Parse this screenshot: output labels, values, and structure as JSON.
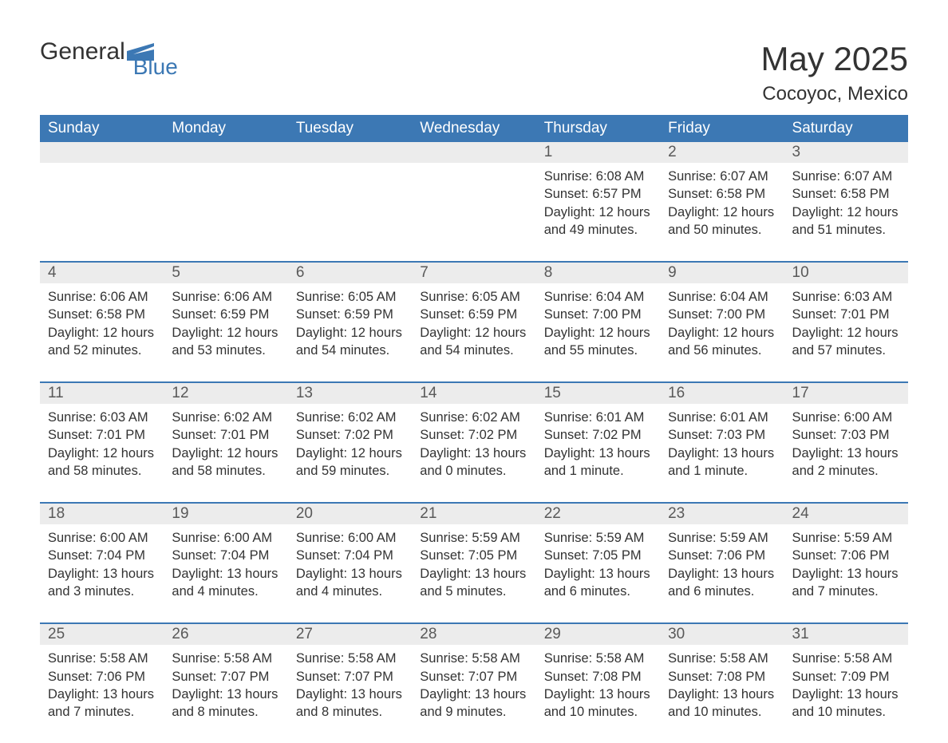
{
  "brand": {
    "general": "General",
    "blue": "Blue"
  },
  "title": "May 2025",
  "location": "Cocoyoc, Mexico",
  "colors": {
    "header_bg": "#3c78b4",
    "header_text": "#ffffff",
    "daynum_bg": "#ececec",
    "daynum_text": "#595959",
    "body_text": "#333333",
    "border": "#3c78b4",
    "page_bg": "#ffffff"
  },
  "dow": [
    "Sunday",
    "Monday",
    "Tuesday",
    "Wednesday",
    "Thursday",
    "Friday",
    "Saturday"
  ],
  "weeks": [
    [
      null,
      null,
      null,
      null,
      {
        "n": "1",
        "sr": "Sunrise: 6:08 AM",
        "ss": "Sunset: 6:57 PM",
        "dl": "Daylight: 12 hours and 49 minutes."
      },
      {
        "n": "2",
        "sr": "Sunrise: 6:07 AM",
        "ss": "Sunset: 6:58 PM",
        "dl": "Daylight: 12 hours and 50 minutes."
      },
      {
        "n": "3",
        "sr": "Sunrise: 6:07 AM",
        "ss": "Sunset: 6:58 PM",
        "dl": "Daylight: 12 hours and 51 minutes."
      }
    ],
    [
      {
        "n": "4",
        "sr": "Sunrise: 6:06 AM",
        "ss": "Sunset: 6:58 PM",
        "dl": "Daylight: 12 hours and 52 minutes."
      },
      {
        "n": "5",
        "sr": "Sunrise: 6:06 AM",
        "ss": "Sunset: 6:59 PM",
        "dl": "Daylight: 12 hours and 53 minutes."
      },
      {
        "n": "6",
        "sr": "Sunrise: 6:05 AM",
        "ss": "Sunset: 6:59 PM",
        "dl": "Daylight: 12 hours and 54 minutes."
      },
      {
        "n": "7",
        "sr": "Sunrise: 6:05 AM",
        "ss": "Sunset: 6:59 PM",
        "dl": "Daylight: 12 hours and 54 minutes."
      },
      {
        "n": "8",
        "sr": "Sunrise: 6:04 AM",
        "ss": "Sunset: 7:00 PM",
        "dl": "Daylight: 12 hours and 55 minutes."
      },
      {
        "n": "9",
        "sr": "Sunrise: 6:04 AM",
        "ss": "Sunset: 7:00 PM",
        "dl": "Daylight: 12 hours and 56 minutes."
      },
      {
        "n": "10",
        "sr": "Sunrise: 6:03 AM",
        "ss": "Sunset: 7:01 PM",
        "dl": "Daylight: 12 hours and 57 minutes."
      }
    ],
    [
      {
        "n": "11",
        "sr": "Sunrise: 6:03 AM",
        "ss": "Sunset: 7:01 PM",
        "dl": "Daylight: 12 hours and 58 minutes."
      },
      {
        "n": "12",
        "sr": "Sunrise: 6:02 AM",
        "ss": "Sunset: 7:01 PM",
        "dl": "Daylight: 12 hours and 58 minutes."
      },
      {
        "n": "13",
        "sr": "Sunrise: 6:02 AM",
        "ss": "Sunset: 7:02 PM",
        "dl": "Daylight: 12 hours and 59 minutes."
      },
      {
        "n": "14",
        "sr": "Sunrise: 6:02 AM",
        "ss": "Sunset: 7:02 PM",
        "dl": "Daylight: 13 hours and 0 minutes."
      },
      {
        "n": "15",
        "sr": "Sunrise: 6:01 AM",
        "ss": "Sunset: 7:02 PM",
        "dl": "Daylight: 13 hours and 1 minute."
      },
      {
        "n": "16",
        "sr": "Sunrise: 6:01 AM",
        "ss": "Sunset: 7:03 PM",
        "dl": "Daylight: 13 hours and 1 minute."
      },
      {
        "n": "17",
        "sr": "Sunrise: 6:00 AM",
        "ss": "Sunset: 7:03 PM",
        "dl": "Daylight: 13 hours and 2 minutes."
      }
    ],
    [
      {
        "n": "18",
        "sr": "Sunrise: 6:00 AM",
        "ss": "Sunset: 7:04 PM",
        "dl": "Daylight: 13 hours and 3 minutes."
      },
      {
        "n": "19",
        "sr": "Sunrise: 6:00 AM",
        "ss": "Sunset: 7:04 PM",
        "dl": "Daylight: 13 hours and 4 minutes."
      },
      {
        "n": "20",
        "sr": "Sunrise: 6:00 AM",
        "ss": "Sunset: 7:04 PM",
        "dl": "Daylight: 13 hours and 4 minutes."
      },
      {
        "n": "21",
        "sr": "Sunrise: 5:59 AM",
        "ss": "Sunset: 7:05 PM",
        "dl": "Daylight: 13 hours and 5 minutes."
      },
      {
        "n": "22",
        "sr": "Sunrise: 5:59 AM",
        "ss": "Sunset: 7:05 PM",
        "dl": "Daylight: 13 hours and 6 minutes."
      },
      {
        "n": "23",
        "sr": "Sunrise: 5:59 AM",
        "ss": "Sunset: 7:06 PM",
        "dl": "Daylight: 13 hours and 6 minutes."
      },
      {
        "n": "24",
        "sr": "Sunrise: 5:59 AM",
        "ss": "Sunset: 7:06 PM",
        "dl": "Daylight: 13 hours and 7 minutes."
      }
    ],
    [
      {
        "n": "25",
        "sr": "Sunrise: 5:58 AM",
        "ss": "Sunset: 7:06 PM",
        "dl": "Daylight: 13 hours and 7 minutes."
      },
      {
        "n": "26",
        "sr": "Sunrise: 5:58 AM",
        "ss": "Sunset: 7:07 PM",
        "dl": "Daylight: 13 hours and 8 minutes."
      },
      {
        "n": "27",
        "sr": "Sunrise: 5:58 AM",
        "ss": "Sunset: 7:07 PM",
        "dl": "Daylight: 13 hours and 8 minutes."
      },
      {
        "n": "28",
        "sr": "Sunrise: 5:58 AM",
        "ss": "Sunset: 7:07 PM",
        "dl": "Daylight: 13 hours and 9 minutes."
      },
      {
        "n": "29",
        "sr": "Sunrise: 5:58 AM",
        "ss": "Sunset: 7:08 PM",
        "dl": "Daylight: 13 hours and 10 minutes."
      },
      {
        "n": "30",
        "sr": "Sunrise: 5:58 AM",
        "ss": "Sunset: 7:08 PM",
        "dl": "Daylight: 13 hours and 10 minutes."
      },
      {
        "n": "31",
        "sr": "Sunrise: 5:58 AM",
        "ss": "Sunset: 7:09 PM",
        "dl": "Daylight: 13 hours and 10 minutes."
      }
    ]
  ]
}
